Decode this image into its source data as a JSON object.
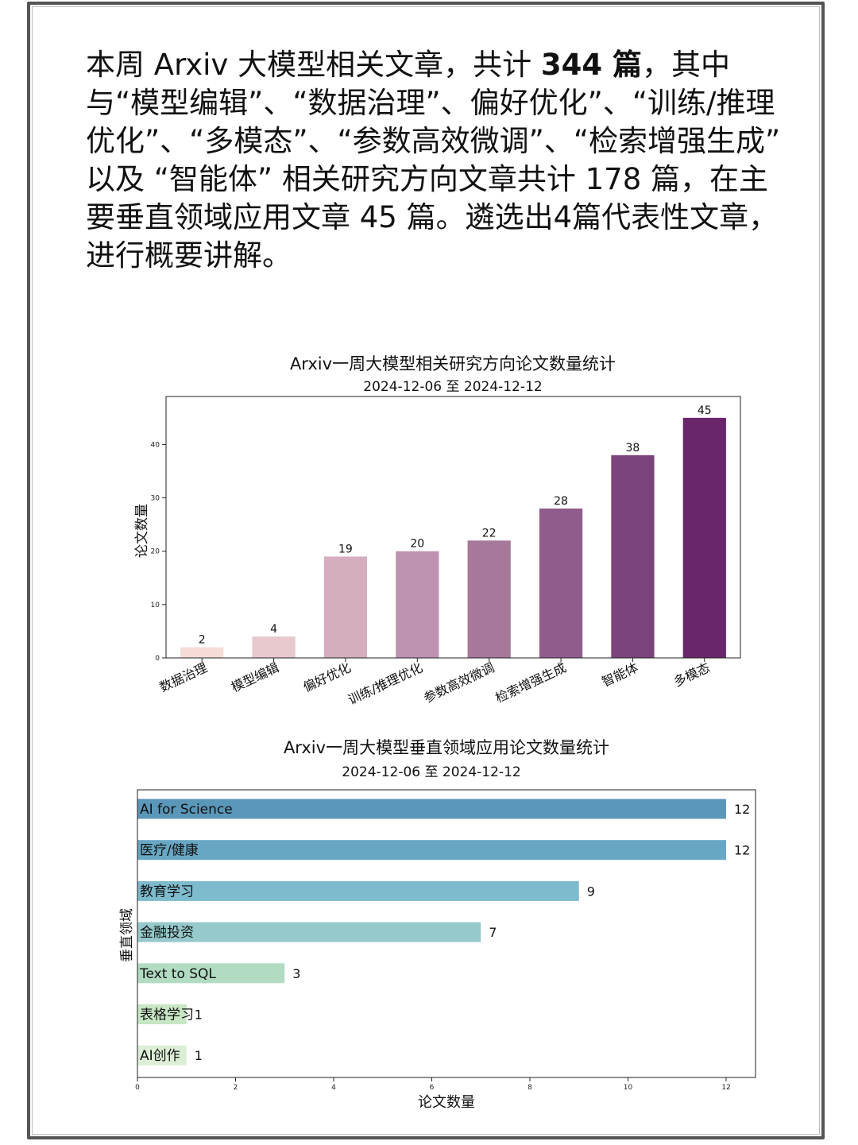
{
  "intro": {
    "part1": "本周 Arxiv 大模型相关文章，共计 ",
    "bold": "344 篇",
    "part2": "，其中与“模型编辑”、“数据治理”、偏好优化”、“训练/推理优化”、“多模态”、“参数高效微调”、“检索增强生成” 以及 “智能体” 相关研究方向文章共计 178 篇，在主要垂直领域应用文章 45 篇。遴选出4篇代表性文章，进行概要讲解。"
  },
  "chart_data": [
    {
      "type": "bar",
      "title": "Arxiv一周大模型相关研究方向论文数量统计",
      "subtitle": "2024-12-06 至 2024-12-12",
      "xlabel": "",
      "ylabel": "论文数量",
      "categories": [
        "数据治理",
        "模型编辑",
        "偏好优化",
        "训练/推理优化",
        "参数高效微调",
        "检索增强生成",
        "智能体",
        "多模态"
      ],
      "values": [
        2,
        4,
        19,
        20,
        22,
        28,
        38,
        45
      ],
      "colors": [
        "#f6dcd6",
        "#e6c8cd",
        "#d4adbf",
        "#be93b1",
        "#a67899",
        "#8f5c8c",
        "#7b437b",
        "#69266b"
      ],
      "ylim": [
        0,
        49
      ],
      "yticks": [
        0,
        10,
        20,
        30,
        40
      ],
      "grid": false
    },
    {
      "type": "bar",
      "orientation": "horizontal",
      "title": "Arxiv一周大模型垂直领域应用论文数量统计",
      "subtitle": "2024-12-06 至 2024-12-12",
      "xlabel": "论文数量",
      "ylabel": "垂直领域",
      "categories": [
        "AI for Science",
        "医疗/健康",
        "教育学习",
        "金融投资",
        "Text to SQL",
        "表格学习",
        "AI创作"
      ],
      "values": [
        12,
        12,
        9,
        7,
        3,
        1,
        1
      ],
      "colors": [
        "#5b97b8",
        "#68a7c3",
        "#7dbbcd",
        "#96c9cb",
        "#b2dcc2",
        "#c7e6c4",
        "#dcefd6"
      ],
      "xlim": [
        0,
        12.6
      ],
      "xticks": [
        0,
        2,
        4,
        6,
        8,
        10,
        12
      ],
      "grid": false
    }
  ]
}
